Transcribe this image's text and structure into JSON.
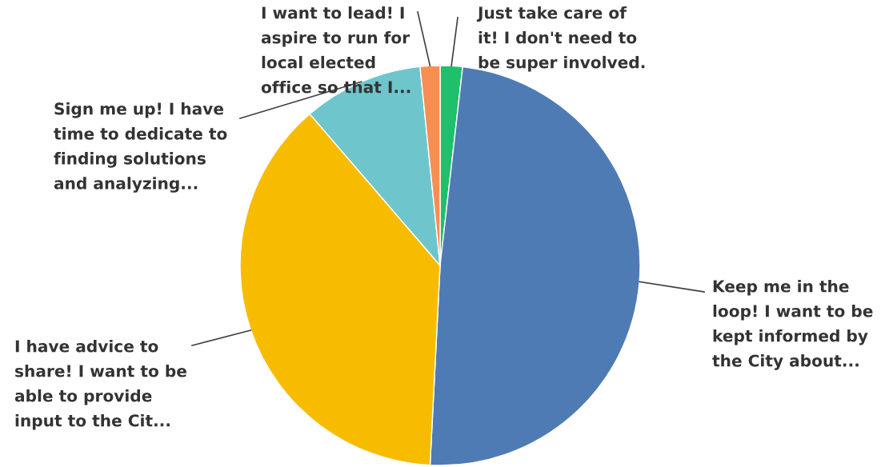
{
  "chart_data": {
    "type": "pie",
    "categories": [
      "Just take care of\nit! I don't need to\nbe super involved.",
      "Keep me in the\nloop! I want to be\nkept informed by\nthe City about...",
      "I have advice to\nshare! I want to be\nable to provide\ninput to the Cit...",
      "Sign me up! I have\ntime to dedicate to\nfinding solutions\nand analyzing...",
      "I want to lead! I\naspire to run for\nlocal elected\noffice so that I..."
    ],
    "values": [
      1.8,
      49,
      37.9,
      9.7,
      1.6
    ],
    "colors": [
      "#1fbf6b",
      "#4f7bb5",
      "#f7bc00",
      "#6ec6cc",
      "#f98e52"
    ]
  }
}
